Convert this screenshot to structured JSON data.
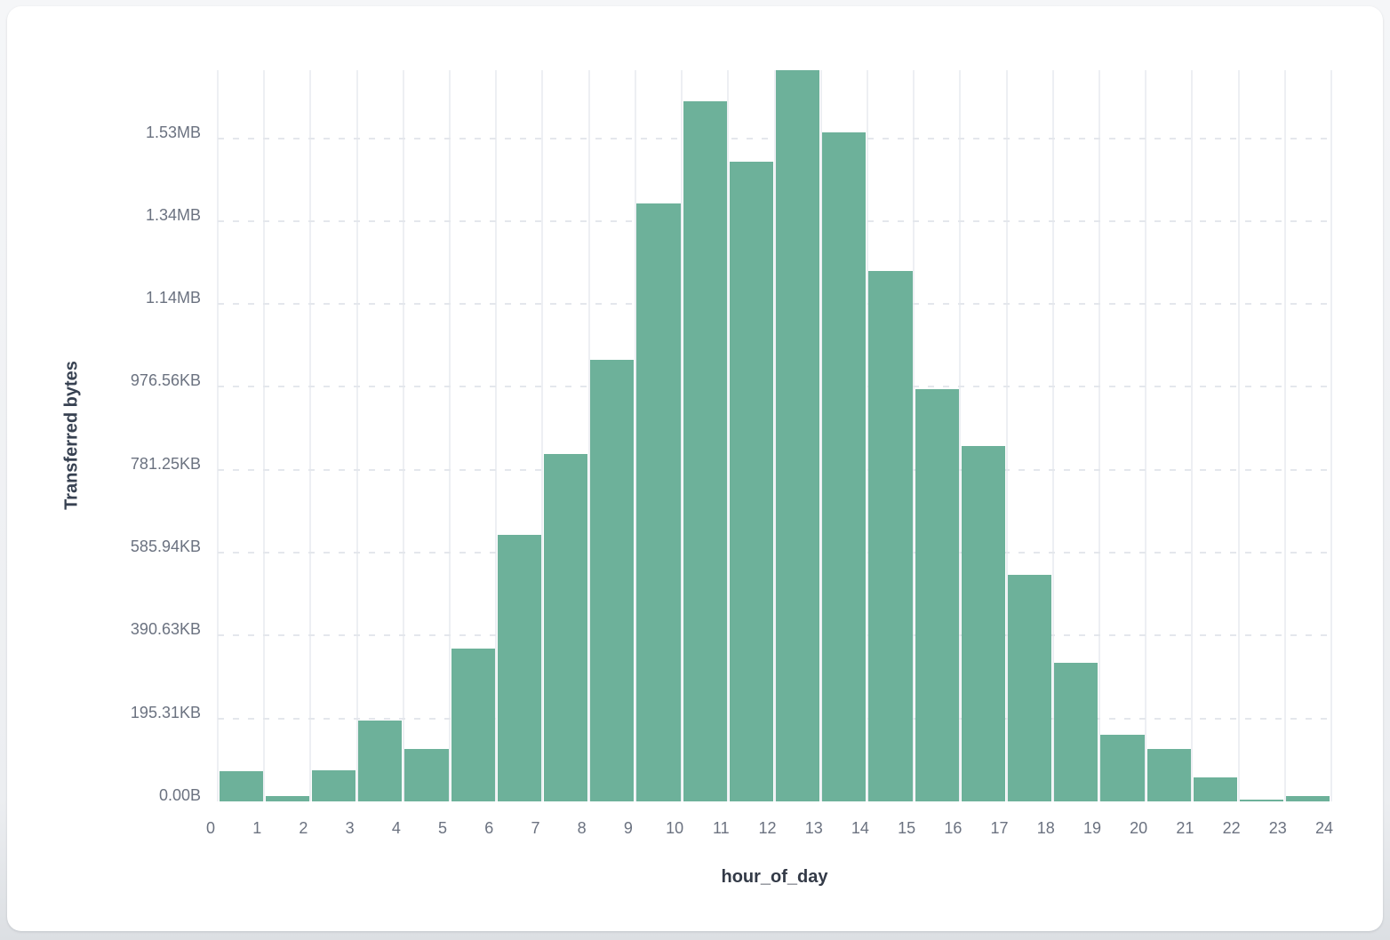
{
  "chart_data": {
    "type": "bar",
    "subtype": "histogram",
    "title": "",
    "xlabel": "hour_of_day",
    "ylabel": "Transferred bytes",
    "unit": "bytes",
    "bar_color": "#6db19a",
    "grid": {
      "vertical": "solid",
      "horizontal": "dashed",
      "legend": "none"
    },
    "xlim": [
      0,
      24
    ],
    "ylim": [
      0,
      1764000
    ],
    "x_bin_start": [
      0,
      1,
      2,
      3,
      4,
      5,
      6,
      7,
      8,
      9,
      10,
      11,
      12,
      13,
      14,
      15,
      16,
      17,
      18,
      19,
      20,
      21,
      22,
      23
    ],
    "values": [
      73000,
      13000,
      76000,
      196000,
      126000,
      369000,
      642000,
      838000,
      1066000,
      1442000,
      1689000,
      1544000,
      1764000,
      1613000,
      1279000,
      995000,
      857000,
      547000,
      334000,
      160000,
      126000,
      57000,
      4000,
      13000
    ],
    "x_tick_labels": [
      "0",
      "1",
      "2",
      "3",
      "4",
      "5",
      "6",
      "7",
      "8",
      "9",
      "10",
      "11",
      "12",
      "13",
      "14",
      "15",
      "16",
      "17",
      "18",
      "19",
      "20",
      "21",
      "22",
      "23",
      "24"
    ],
    "y_tick_labels": [
      "0.00B",
      "195.31KB",
      "390.63KB",
      "585.94KB",
      "781.25KB",
      "976.56KB",
      "1.14MB",
      "1.34MB",
      "1.53MB"
    ],
    "y_tick_bytes": [
      0,
      200000,
      400000,
      600000,
      800000,
      1000000,
      1200000,
      1400000,
      1600000
    ]
  }
}
